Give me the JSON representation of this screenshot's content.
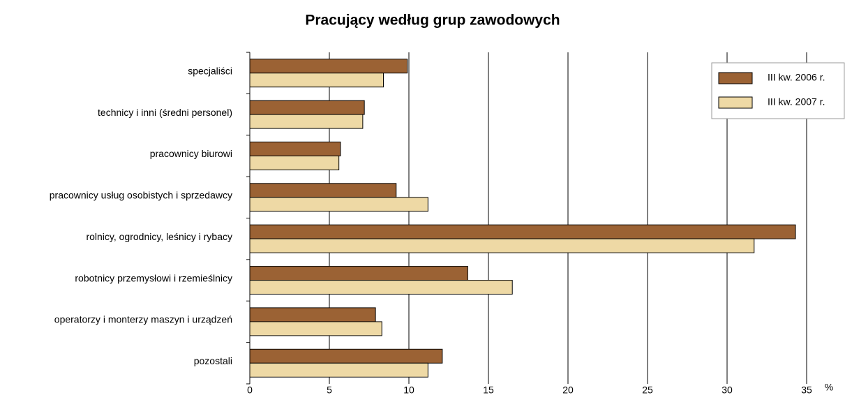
{
  "chart_data": {
    "type": "hbar",
    "title": "Pracujący według grup zawodowych",
    "categories": [
      "specjaliści",
      "technicy i inni (średni personel)",
      "pracownicy biurowi",
      "pracownicy usług osobistych i sprzedawcy",
      "rolnicy, ogrodnicy, leśnicy i rybacy",
      "robotnicy przemysłowi i rzemieślnicy",
      "operatorzy i monterzy maszyn i urządzeń",
      "pozostali"
    ],
    "series": [
      {
        "name": "III kw. 2006 r.",
        "color": "#9b6234",
        "values": [
          9.9,
          7.2,
          5.7,
          9.2,
          34.3,
          13.7,
          7.9,
          12.1
        ]
      },
      {
        "name": "III kw. 2007 r.",
        "color": "#eed9a5",
        "values": [
          8.4,
          7.1,
          5.6,
          11.2,
          31.7,
          16.5,
          8.3,
          11.2
        ]
      }
    ],
    "xlim": [
      0,
      35
    ],
    "xticks": [
      0,
      5,
      10,
      15,
      20,
      25,
      30,
      35
    ],
    "x_unit": "%",
    "grid": true,
    "legend": "upper right"
  }
}
